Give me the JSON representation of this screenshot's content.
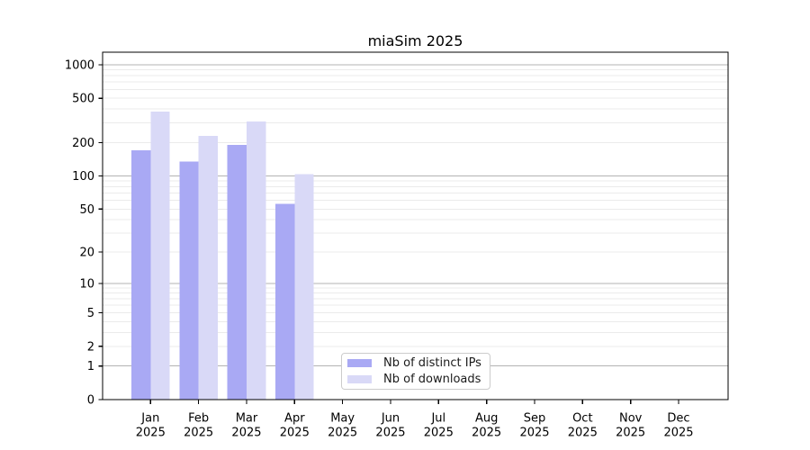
{
  "figure": {
    "title": "miaSim 2025"
  },
  "chart_data": {
    "type": "bar",
    "title": "miaSim 2025",
    "categories": [
      "Jan 2025",
      "Feb 2025",
      "Mar 2025",
      "Apr 2025",
      "May 2025",
      "Jun 2025",
      "Jul 2025",
      "Aug 2025",
      "Sep 2025",
      "Oct 2025",
      "Nov 2025",
      "Dec 2025"
    ],
    "series": [
      {
        "name": "Nb of distinct IPs",
        "color": "#a9a9f4",
        "values": [
          170,
          135,
          190,
          56,
          null,
          null,
          null,
          null,
          null,
          null,
          null,
          null
        ]
      },
      {
        "name": "Nb of downloads",
        "color": "#d9d9f7",
        "values": [
          380,
          230,
          310,
          104,
          null,
          null,
          null,
          null,
          null,
          null,
          null,
          null
        ]
      }
    ],
    "xlabel": "",
    "ylabel": "",
    "yscale": "log10(value+1)",
    "y_ticks": [
      0,
      1,
      2,
      5,
      10,
      20,
      50,
      100,
      200,
      500,
      1000
    ],
    "y_major_gridlines": [
      1,
      10,
      100,
      1000
    ],
    "ylim": [
      0,
      1300
    ],
    "grid": "horizontal",
    "legend_position": "inside bottom-center"
  },
  "colors": {
    "bar_distinct_ips": "#a9a9f4",
    "bar_downloads": "#d9d9f7",
    "major_grid": "#b3b3b3",
    "minor_grid": "#ebebeb",
    "spine": "#000000",
    "tick_text": "#000000",
    "legend_border": "#cccccc",
    "legend_background": "#ffffff"
  }
}
